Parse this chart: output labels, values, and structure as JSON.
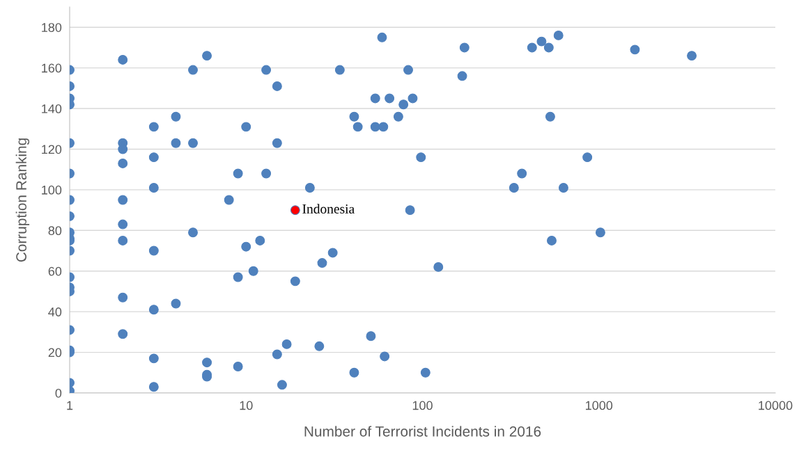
{
  "chart_data": {
    "type": "scatter",
    "xlabel": "Number of Terrorist Incidents in 2016",
    "ylabel": "Corruption Ranking",
    "log": "x",
    "xlim": [
      1,
      10000
    ],
    "xticks": [
      1,
      10,
      100,
      1000,
      10000
    ],
    "ylim": [
      0,
      190
    ],
    "yticks": [
      0,
      20,
      40,
      60,
      80,
      100,
      120,
      140,
      160,
      180
    ],
    "grid": "y",
    "marker": "circle",
    "series": [
      {
        "color": "#4f81bd",
        "x": [
          1,
          1,
          1,
          1,
          1,
          1,
          1,
          1,
          1,
          1,
          1,
          1,
          1,
          1,
          1,
          1,
          1,
          1,
          1,
          1,
          2,
          2,
          2,
          2,
          2,
          2,
          2,
          2,
          2,
          3,
          3,
          3,
          3,
          3,
          3,
          3,
          4,
          4,
          4,
          5,
          5,
          5,
          6,
          6,
          6,
          6,
          8,
          9,
          9,
          9,
          10,
          10,
          11,
          12,
          13,
          13,
          15,
          15,
          15,
          16,
          17,
          19,
          23,
          26,
          27,
          31,
          34,
          41,
          41,
          43,
          51,
          54,
          54,
          59,
          60,
          61,
          65,
          73,
          78,
          83,
          85,
          88,
          98,
          104,
          123,
          168,
          173,
          330,
          366,
          418,
          473,
          520,
          530,
          540,
          590,
          630,
          860,
          1020,
          1600,
          3360
        ],
        "values": [
          159,
          151,
          145,
          142,
          123,
          108,
          95,
          87,
          79,
          76,
          75,
          70,
          57,
          52,
          50,
          31,
          21,
          20,
          5,
          1,
          164,
          123,
          120,
          113,
          95,
          83,
          75,
          47,
          29,
          131,
          116,
          101,
          70,
          41,
          17,
          3,
          136,
          123,
          44,
          159,
          123,
          79,
          166,
          15,
          9,
          8,
          95,
          108,
          57,
          13,
          131,
          72,
          60,
          75,
          159,
          108,
          151,
          123,
          19,
          4,
          24,
          55,
          101,
          23,
          64,
          69,
          159,
          136,
          10,
          131,
          28,
          145,
          131,
          175,
          131,
          18,
          145,
          136,
          142,
          159,
          90,
          145,
          116,
          10,
          62,
          156,
          170,
          101,
          108,
          170,
          173,
          170,
          136,
          75,
          176,
          101,
          116,
          79,
          169,
          166
        ]
      },
      {
        "color": "#ff0000",
        "x": [
          19
        ],
        "values": [
          90
        ]
      }
    ],
    "annotations": [
      {
        "text": "Indonesia",
        "x": 19,
        "y": 90
      }
    ]
  }
}
